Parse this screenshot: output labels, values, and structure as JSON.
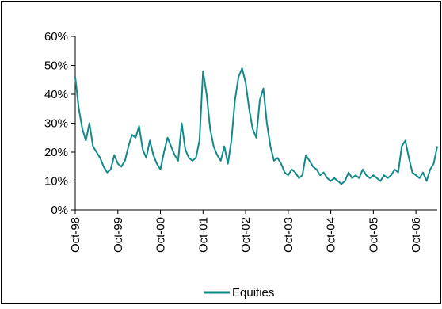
{
  "chart_data": {
    "type": "line",
    "title": "",
    "xlabel": "",
    "ylabel": "",
    "ylim": [
      0,
      60
    ],
    "y_ticks": [
      0,
      10,
      20,
      30,
      40,
      50,
      60
    ],
    "y_tick_labels": [
      "0%",
      "10%",
      "20%",
      "30%",
      "40%",
      "50%",
      "60%"
    ],
    "x_ticks": [
      "1998-10",
      "1999-10",
      "2000-10",
      "2001-10",
      "2002-10",
      "2003-10",
      "2004-10",
      "2005-10",
      "2006-10"
    ],
    "x_tick_labels": [
      "Oct-98",
      "Oct-99",
      "Oct-00",
      "Oct-01",
      "Oct-02",
      "Oct-03",
      "Oct-04",
      "Oct-05",
      "Oct-06"
    ],
    "xlim": [
      "1998-10",
      "2007-04"
    ],
    "grid": false,
    "legend": "bottom",
    "series": [
      {
        "name": "Equities",
        "color": "#138a8a",
        "x": [
          "1998-10",
          "1998-11",
          "1998-12",
          "1999-01",
          "1999-02",
          "1999-03",
          "1999-04",
          "1999-05",
          "1999-06",
          "1999-07",
          "1999-08",
          "1999-09",
          "1999-10",
          "1999-11",
          "1999-12",
          "2000-01",
          "2000-02",
          "2000-03",
          "2000-04",
          "2000-05",
          "2000-06",
          "2000-07",
          "2000-08",
          "2000-09",
          "2000-10",
          "2000-11",
          "2000-12",
          "2001-01",
          "2001-02",
          "2001-03",
          "2001-04",
          "2001-05",
          "2001-06",
          "2001-07",
          "2001-08",
          "2001-09",
          "2001-10",
          "2001-11",
          "2001-12",
          "2002-01",
          "2002-02",
          "2002-03",
          "2002-04",
          "2002-05",
          "2002-06",
          "2002-07",
          "2002-08",
          "2002-09",
          "2002-10",
          "2002-11",
          "2002-12",
          "2003-01",
          "2003-02",
          "2003-03",
          "2003-04",
          "2003-05",
          "2003-06",
          "2003-07",
          "2003-08",
          "2003-09",
          "2003-10",
          "2003-11",
          "2003-12",
          "2004-01",
          "2004-02",
          "2004-03",
          "2004-04",
          "2004-05",
          "2004-06",
          "2004-07",
          "2004-08",
          "2004-09",
          "2004-10",
          "2004-11",
          "2004-12",
          "2005-01",
          "2005-02",
          "2005-03",
          "2005-04",
          "2005-05",
          "2005-06",
          "2005-07",
          "2005-08",
          "2005-09",
          "2005-10",
          "2005-11",
          "2005-12",
          "2006-01",
          "2006-02",
          "2006-03",
          "2006-04",
          "2006-05",
          "2006-06",
          "2006-07",
          "2006-08",
          "2006-09",
          "2006-10",
          "2006-11",
          "2006-12",
          "2007-01",
          "2007-02",
          "2007-03",
          "2007-04"
        ],
        "values": [
          46,
          35,
          28,
          24,
          30,
          22,
          20,
          18,
          15,
          13,
          14,
          19,
          16,
          15,
          17,
          22,
          26,
          25,
          29,
          21,
          18,
          24,
          19,
          16,
          14,
          20,
          25,
          22,
          19,
          17,
          30,
          21,
          18,
          17,
          18,
          24,
          48,
          40,
          28,
          22,
          19,
          17,
          22,
          16,
          24,
          38,
          46,
          49,
          44,
          35,
          28,
          25,
          38,
          42,
          30,
          22,
          17,
          18,
          16,
          13,
          12,
          14,
          13,
          11,
          12,
          19,
          17,
          15,
          14,
          12,
          13,
          11,
          10,
          11,
          10,
          9,
          10,
          13,
          11,
          12,
          11,
          14,
          12,
          11,
          12,
          11,
          10,
          12,
          11,
          12,
          14,
          13,
          22,
          24,
          18,
          13,
          12,
          11,
          13,
          10,
          14,
          16,
          22
        ]
      }
    ]
  }
}
